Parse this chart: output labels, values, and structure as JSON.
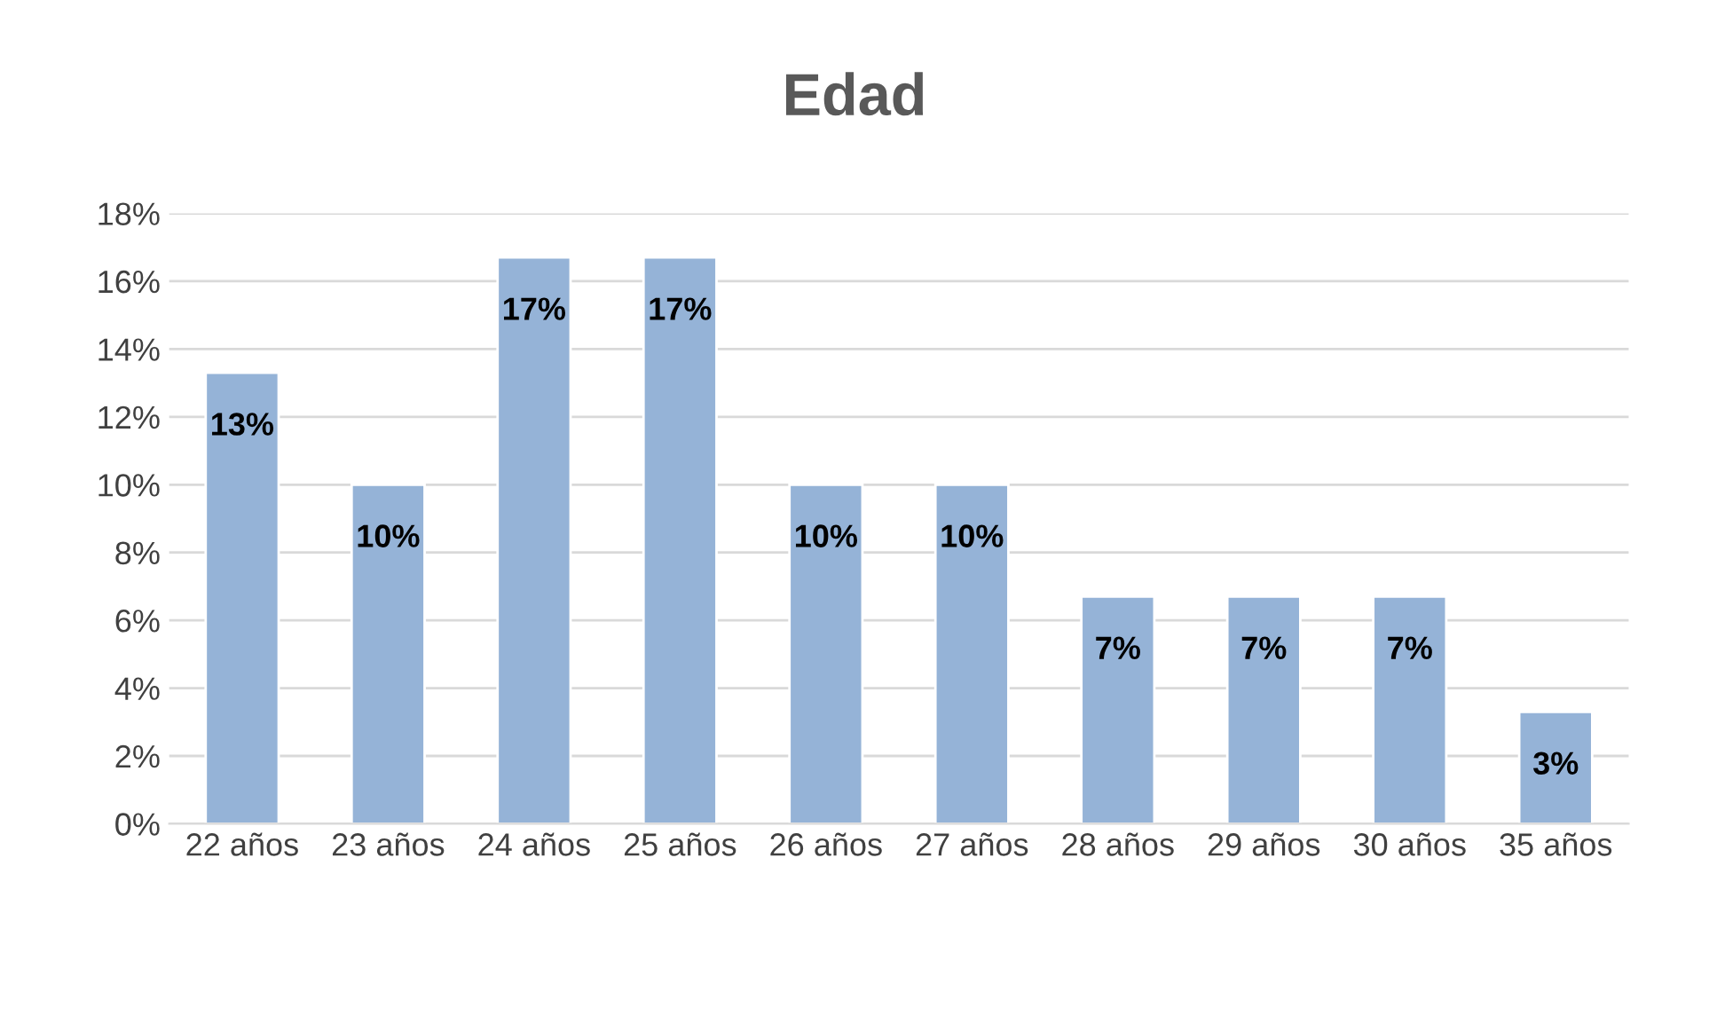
{
  "chart_data": {
    "type": "bar",
    "title": "Edad",
    "categories": [
      "22 años",
      "23 años",
      "24 años",
      "25 años",
      "26 años",
      "27 años",
      "28 años",
      "29 años",
      "30 años",
      "35 años"
    ],
    "values": [
      13.3,
      10,
      16.7,
      16.7,
      10,
      10,
      6.7,
      6.7,
      6.7,
      3.3
    ],
    "value_labels": [
      "13%",
      "10%",
      "17%",
      "17%",
      "10%",
      "10%",
      "7%",
      "7%",
      "7%",
      "3%"
    ],
    "color": "#95b3d7",
    "ylim": [
      0,
      18
    ],
    "yticks": [
      {
        "value": 0,
        "label": "0%"
      },
      {
        "value": 2,
        "label": "2%"
      },
      {
        "value": 4,
        "label": "4%"
      },
      {
        "value": 6,
        "label": "6%"
      },
      {
        "value": 8,
        "label": "8%"
      },
      {
        "value": 10,
        "label": "10%"
      },
      {
        "value": 12,
        "label": "12%"
      },
      {
        "value": 14,
        "label": "14%"
      },
      {
        "value": 16,
        "label": "16%"
      },
      {
        "value": 18,
        "label": "18%"
      }
    ],
    "grid": "y",
    "legend": false
  }
}
